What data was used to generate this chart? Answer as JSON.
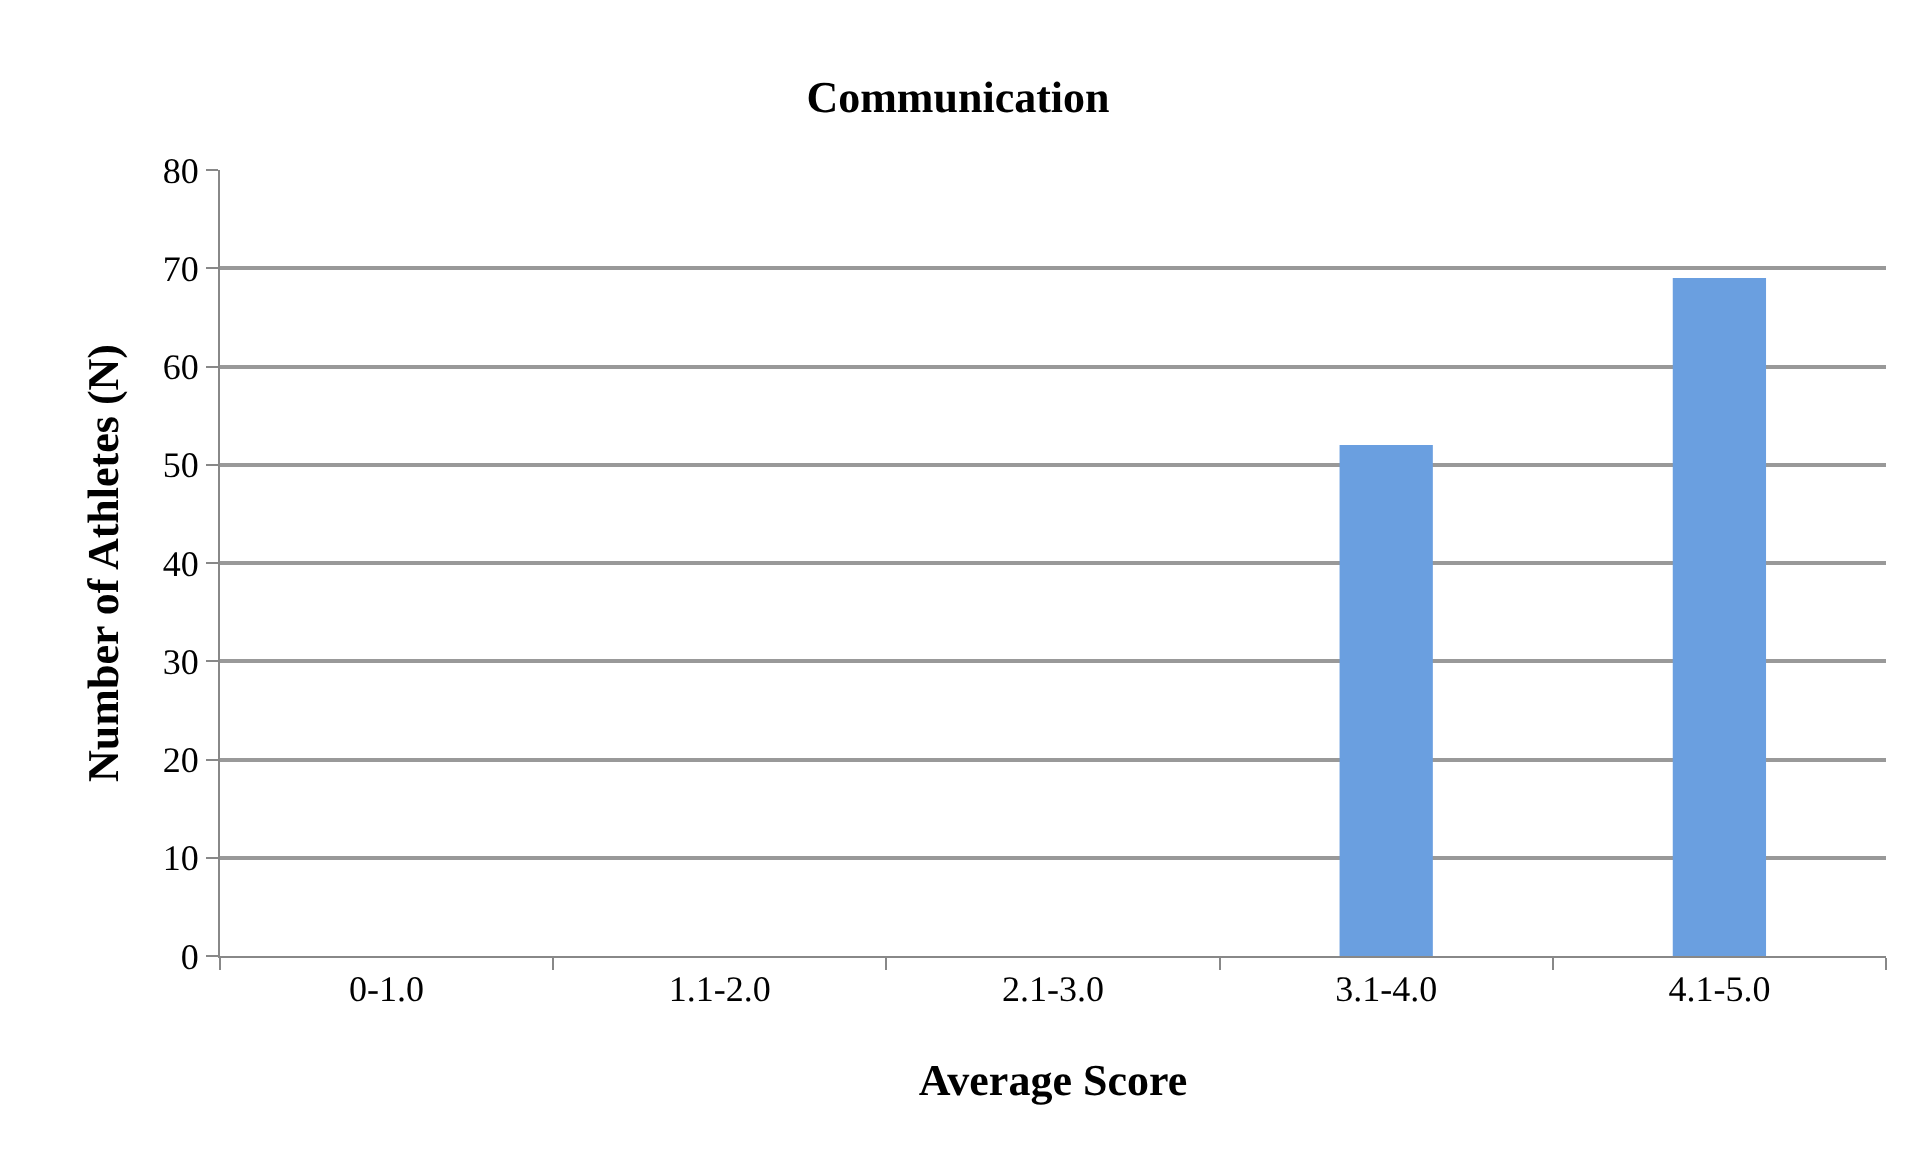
{
  "chart_data": {
    "type": "bar",
    "title": "Communication",
    "xlabel": "Average Score",
    "ylabel": "Number of Athletes (N)",
    "categories": [
      "0-1.0",
      "1.1-2.0",
      "2.1-3.0",
      "3.1-4.0",
      "4.1-5.0"
    ],
    "values": [
      0,
      0,
      0,
      52,
      69
    ],
    "color": "#6a9fe0",
    "ylim": [
      0,
      80
    ],
    "yticks": [
      0,
      10,
      20,
      30,
      40,
      50,
      60,
      70,
      80
    ],
    "grid": "y",
    "legend": false
  }
}
